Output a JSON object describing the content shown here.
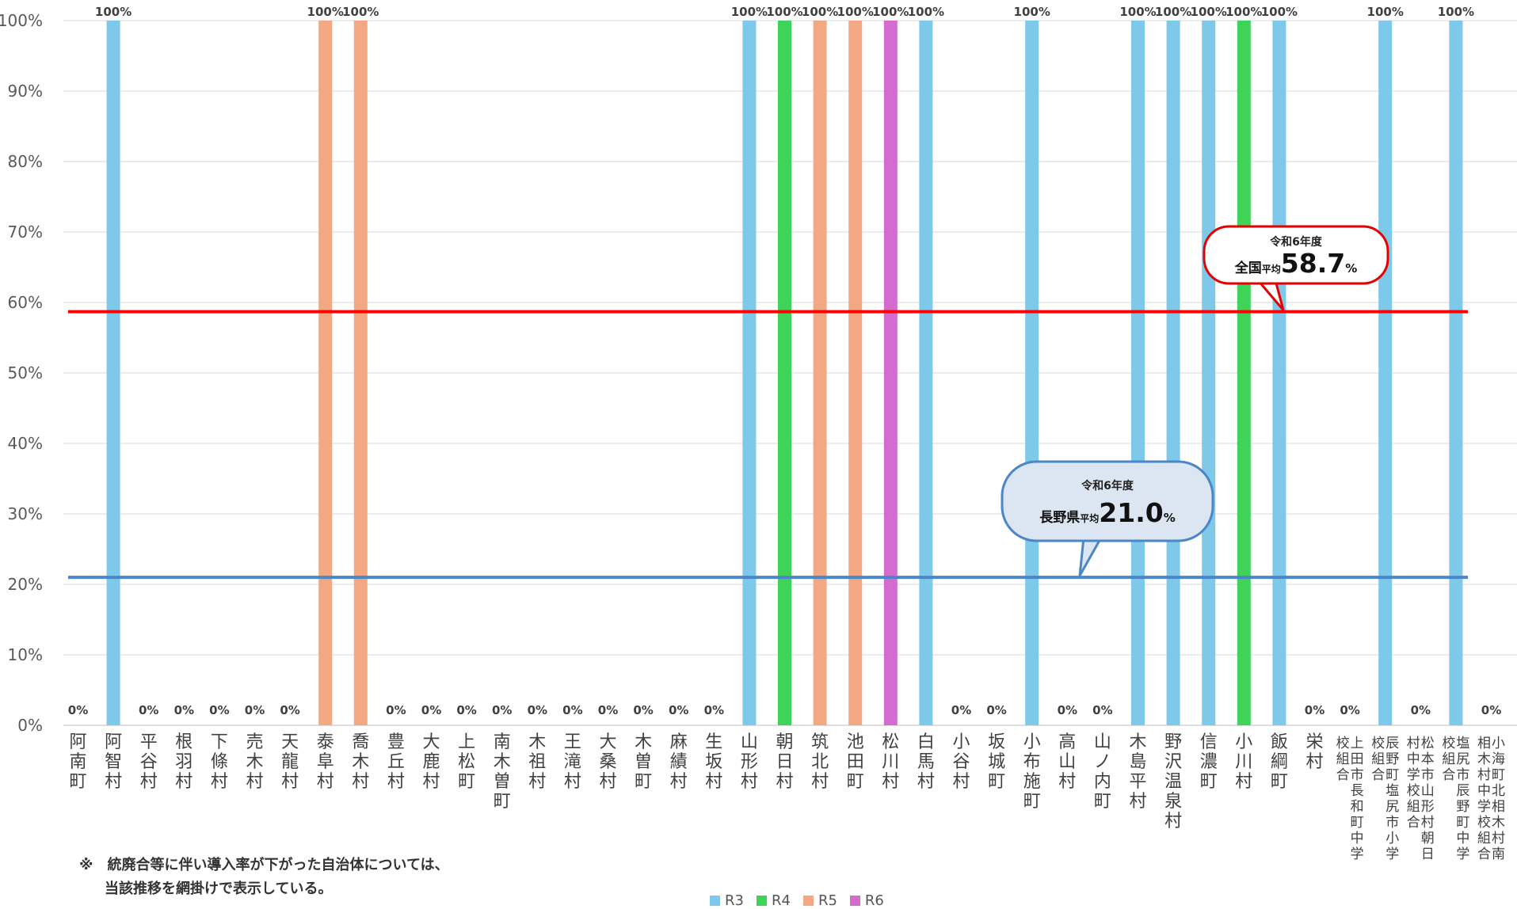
{
  "chart_data": {
    "type": "bar",
    "ylim": [
      0,
      100
    ],
    "yticks": [
      "0%",
      "10%",
      "20%",
      "30%",
      "40%",
      "50%",
      "60%",
      "70%",
      "80%",
      "90%",
      "100%"
    ],
    "categories": [
      "阿南町",
      "阿智村",
      "平谷村",
      "根羽村",
      "下條村",
      "売木村",
      "天龍村",
      "泰阜村",
      "喬木村",
      "豊丘村",
      "大鹿村",
      "上松町",
      "南木曽町",
      "木祖村",
      "王滝村",
      "大桑村",
      "木曽町",
      "麻績村",
      "生坂村",
      "山形村",
      "朝日村",
      "筑北村",
      "池田町",
      "松川村",
      "白馬村",
      "小谷村",
      "坂城町",
      "小布施町",
      "高山村",
      "山ノ内町",
      "木島平村",
      "野沢温泉村",
      "信濃町",
      "小川村",
      "飯綱町",
      "栄村",
      "上田市長和町中学校組合",
      "辰野町塩尻市小学校組合",
      "松本市山形村朝日村中学校組合",
      "塩尻市辰野町中学校組合",
      "小海町北相木村南相木村中学校組合"
    ],
    "values": [
      0,
      100,
      0,
      0,
      0,
      0,
      0,
      100,
      100,
      0,
      0,
      0,
      0,
      0,
      0,
      0,
      0,
      0,
      0,
      100,
      100,
      100,
      100,
      100,
      100,
      0,
      0,
      100,
      0,
      0,
      100,
      100,
      100,
      100,
      100,
      0,
      0,
      100,
      0,
      100,
      0
    ],
    "value_labels": [
      "0%",
      "100%",
      "0%",
      "0%",
      "0%",
      "0%",
      "0%",
      "100%",
      "100%",
      "0%",
      "0%",
      "0%",
      "0%",
      "0%",
      "0%",
      "0%",
      "0%",
      "0%",
      "0%",
      "100%",
      "100%",
      "100%",
      "100%",
      "100%",
      "100%",
      "0%",
      "0%",
      "100%",
      "0%",
      "0%",
      "100%",
      "100%",
      "100%",
      "100%",
      "100%",
      "0%",
      "0%",
      "100%",
      "0%",
      "100%",
      "0%"
    ],
    "year_group": [
      "R3",
      "R3",
      "R3",
      "R3",
      "R3",
      "R3",
      "R3",
      "R5",
      "R5",
      "R3",
      "R3",
      "R3",
      "R3",
      "R3",
      "R3",
      "R3",
      "R3",
      "R3",
      "R3",
      "R3",
      "R4",
      "R5",
      "R5",
      "R6",
      "R3",
      "R3",
      "R3",
      "R3",
      "R3",
      "R3",
      "R3",
      "R3",
      "R3",
      "R4",
      "R3",
      "R3",
      "R3",
      "R3",
      "R3",
      "R3",
      "R3"
    ],
    "legend": [
      {
        "name": "R3",
        "color": "#7EC8EA"
      },
      {
        "name": "R4",
        "color": "#3FD35A"
      },
      {
        "name": "R5",
        "color": "#F2A983"
      },
      {
        "name": "R6",
        "color": "#D46BCF"
      }
    ],
    "reference_lines": [
      {
        "value": 58.7,
        "color": "#FF0000",
        "line1": "令和6年度",
        "prefix_big": "全国",
        "prefix_small": "平均",
        "number": "58.7",
        "unit": "%",
        "fill": "#FFFFFF",
        "border": "#E60000"
      },
      {
        "value": 21.0,
        "color": "#4A86C8",
        "line1": "令和6年度",
        "prefix_big": "長野県",
        "prefix_small": "平均",
        "number": "21.0",
        "unit": "%",
        "fill": "#DCE6F2",
        "border": "#4A86C8"
      }
    ],
    "grid": true,
    "legend_position": "bottom"
  },
  "notes": [
    "※　統廃合等に伴い導入率が下がった自治体については、",
    "当該推移を網掛けで表示している。"
  ]
}
